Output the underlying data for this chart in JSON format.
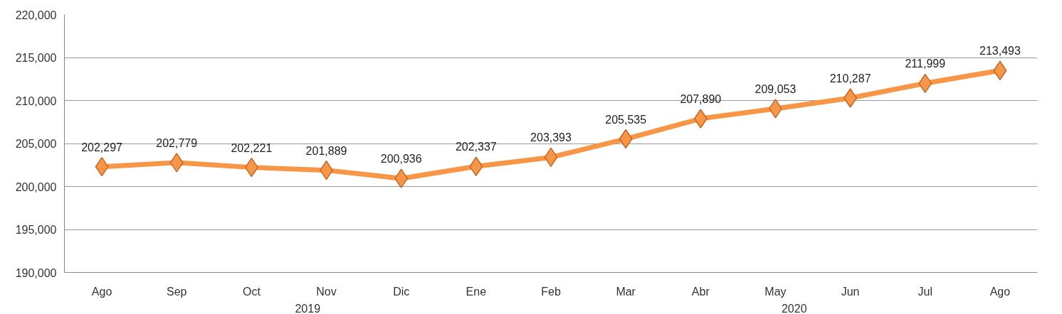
{
  "chart_data": {
    "type": "line",
    "categories": [
      "Ago",
      "Sep",
      "Oct",
      "Nov",
      "Dic",
      "Ene",
      "Feb",
      "Mar",
      "Abr",
      "May",
      "Jun",
      "Jul",
      "Ago"
    ],
    "series": [
      {
        "color": "#f79646",
        "values": [
          202297,
          202779,
          202221,
          201889,
          200936,
          202337,
          203393,
          205535,
          207890,
          209053,
          210287,
          211999,
          213493
        ],
        "value_labels": [
          "202,297",
          "202,779",
          "202,221",
          "201,889",
          "200,936",
          "202,337",
          "203,393",
          "205,535",
          "207,890",
          "209,053",
          "210,287",
          "211,999",
          "213,493"
        ]
      }
    ],
    "ylim": [
      190000,
      220000
    ],
    "yticks": [
      {
        "value": 190000,
        "label": "190,000"
      },
      {
        "value": 195000,
        "label": "195,000"
      },
      {
        "value": 200000,
        "label": "200,000"
      },
      {
        "value": 205000,
        "label": "205,000"
      },
      {
        "value": 210000,
        "label": "210,000"
      },
      {
        "value": 215000,
        "label": "215,000"
      },
      {
        "value": 220000,
        "label": "220,000"
      }
    ],
    "grid": "y",
    "marker": "diamond",
    "line_style": "solid",
    "annotations": [
      "2019",
      "2020"
    ]
  }
}
